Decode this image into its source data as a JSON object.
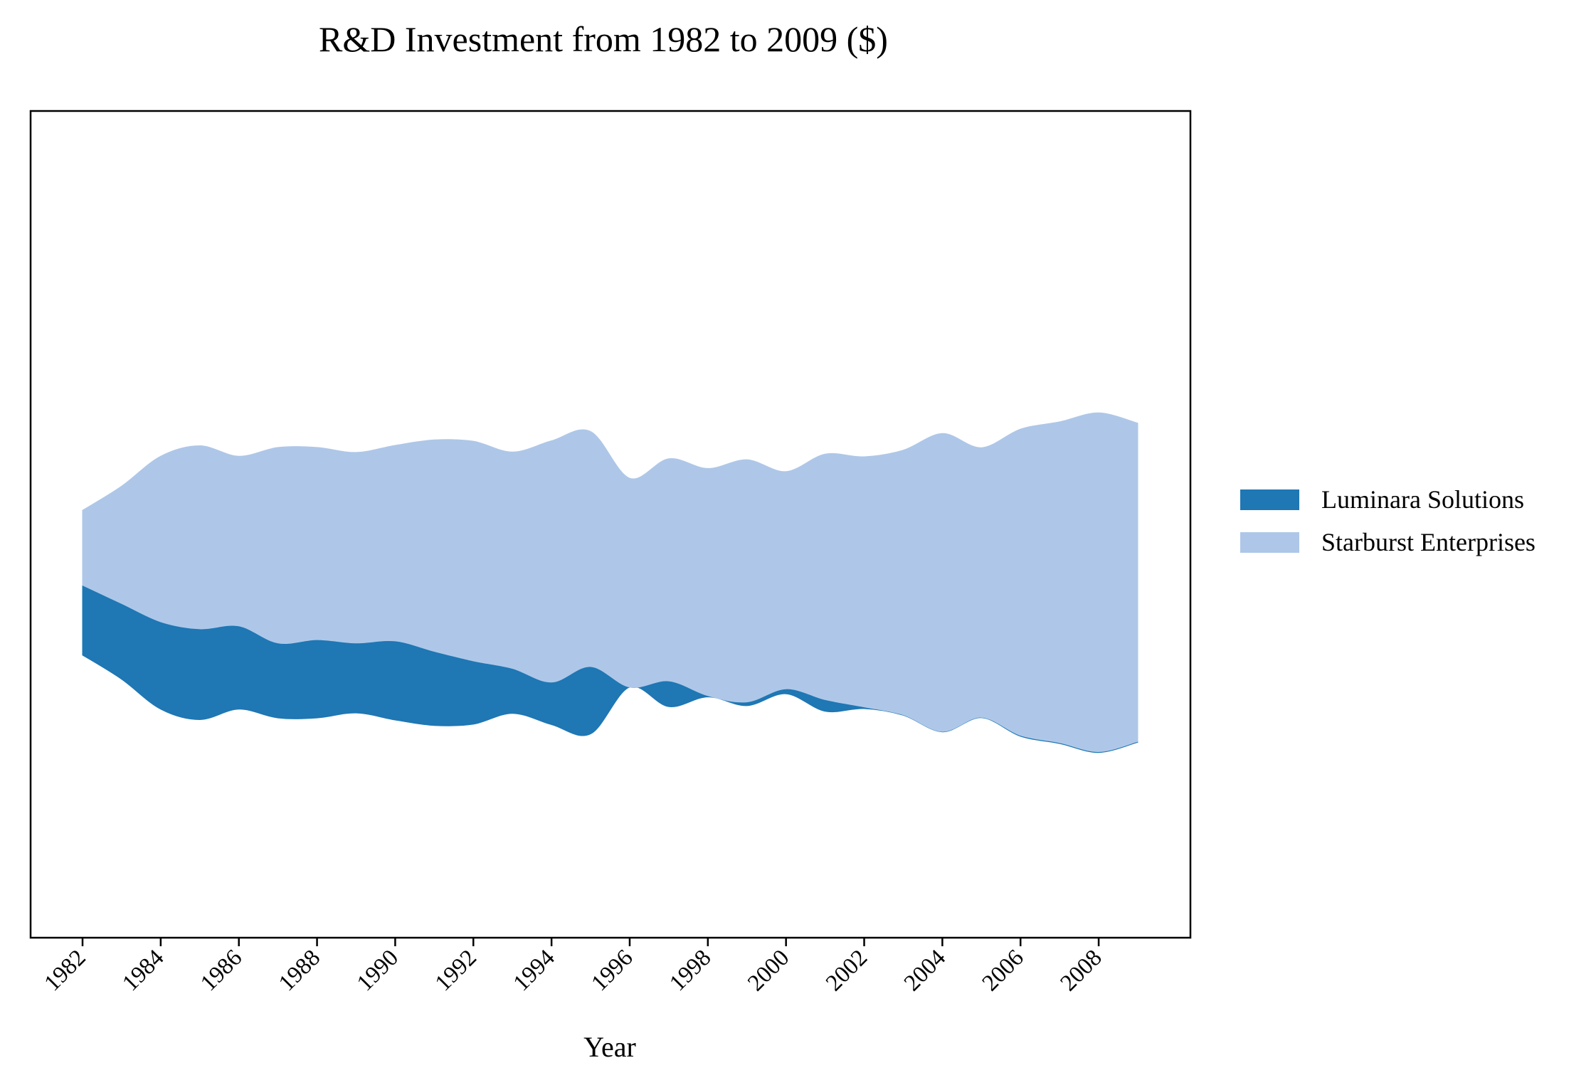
{
  "chart_data": {
    "type": "area",
    "subtype": "streamgraph",
    "title": "R&D Investment from 1982 to 2009 ($)",
    "xlabel": "Year",
    "ylabel": "",
    "x": [
      1982,
      1983,
      1984,
      1985,
      1986,
      1987,
      1988,
      1989,
      1990,
      1991,
      1992,
      1993,
      1994,
      1995,
      1996,
      1997,
      1998,
      1999,
      2000,
      2001,
      2002,
      2003,
      2004,
      2005,
      2006,
      2007,
      2008,
      2009
    ],
    "x_ticks": [
      "1982",
      "1984",
      "1986",
      "1988",
      "1990",
      "1992",
      "1994",
      "1996",
      "1998",
      "2000",
      "2002",
      "2004",
      "2006",
      "2008"
    ],
    "y_ticks_visible": false,
    "grid": false,
    "legend_position": "right",
    "series": [
      {
        "name": "Luminara Solutions",
        "color": "#1f77b4",
        "values": [
          168,
          182,
          210,
          218,
          200,
          180,
          188,
          168,
          190,
          178,
          152,
          108,
          102,
          162,
          0,
          62,
          3,
          9,
          12,
          28,
          4,
          1,
          1,
          1,
          2,
          2,
          2,
          2
        ]
      },
      {
        "name": "Starburst Enterprises",
        "color": "#aec7e8",
        "values": [
          180,
          282,
          398,
          440,
          408,
          470,
          462,
          458,
          470,
          508,
          528,
          520,
          580,
          565,
          502,
          534,
          546,
          582,
          522,
          590,
          601,
          636,
          716,
          648,
          736,
          771,
          814,
          765
        ]
      }
    ]
  }
}
